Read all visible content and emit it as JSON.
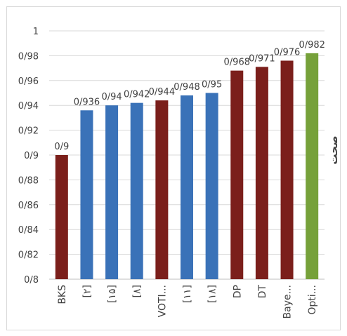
{
  "chart_data": {
    "type": "bar",
    "ylabel": "صحت",
    "ylim": [
      0.8,
      1.0
    ],
    "yticks": [
      "0/8",
      "0/82",
      "0/84",
      "0/86",
      "0/88",
      "0/9",
      "0/92",
      "0/94",
      "0/96",
      "0/98",
      "1"
    ],
    "grid": true,
    "categories": [
      "BKS",
      "[۲]",
      "[۱۵]",
      "[۸]",
      "VOTI...",
      "[۱۱]",
      "[۱۸]",
      "DP",
      "DT",
      "Baye...",
      "Opti..."
    ],
    "values": [
      0.9,
      0.936,
      0.94,
      0.942,
      0.944,
      0.948,
      0.95,
      0.968,
      0.971,
      0.976,
      0.982
    ],
    "data_labels": [
      "0/9",
      "0/936",
      "0/94",
      "0/942",
      "0/944",
      "0/948",
      "0/95",
      "0/968",
      "0/971",
      "0/976",
      "0/982"
    ],
    "colors": [
      "#7b1f1b",
      "#3a72b8",
      "#3a72b8",
      "#3a72b8",
      "#7b1f1b",
      "#3a72b8",
      "#3a72b8",
      "#7b1f1b",
      "#7b1f1b",
      "#7b1f1b",
      "#76a13a"
    ]
  }
}
